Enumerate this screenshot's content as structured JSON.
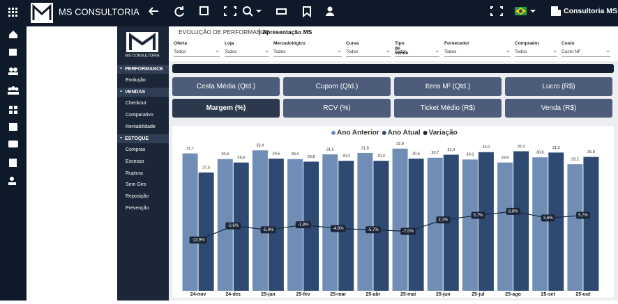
{
  "header": {
    "brand": "MS CONSULTORIA",
    "user": "Consultoria MS"
  },
  "sidebar": {
    "logo": "MS CONSULTORIA",
    "sections": [
      {
        "title": "PERFORMANCE",
        "items": [
          "Evolução"
        ]
      },
      {
        "title": "VENDAS",
        "items": [
          "Checkout",
          "Comparativo",
          "Rentabilidade"
        ]
      },
      {
        "title": "ESTOQUE",
        "items": [
          "Compras",
          "Excesso",
          "Ruptura",
          "Sem Giro",
          "Reposição",
          "Prevenção"
        ]
      }
    ]
  },
  "page": {
    "title": "EVOLUÇÃO DE PERFORMANCE",
    "subtitle": "Apresentação MS"
  },
  "filters": [
    {
      "label": "Oferta",
      "value": "Todos"
    },
    {
      "label": "Loja",
      "value": "Todos"
    },
    {
      "label": "Mercadológico",
      "value": "Todos"
    },
    {
      "label": "Curva",
      "value": "Todos"
    },
    {
      "label": "Tipo de Venda",
      "value": "Todos"
    },
    {
      "label": "Fornecedor",
      "value": "Todos"
    },
    {
      "label": "Comprador",
      "value": "Todos"
    },
    {
      "label": "Custo",
      "value": "Custo NF"
    }
  ],
  "buttons": [
    "Cesta Média (Qtd.)",
    "Cupom (Qtd.)",
    "Itens M² (Qtd.)",
    "Lucro (R$)",
    "Margem (%)",
    "RCV (%)",
    "Ticket Médio (R$)",
    "Venda (R$)"
  ],
  "selected_button": 4,
  "chart_data": {
    "type": "bar",
    "categories": [
      "24-nov",
      "24-dez",
      "25-jan",
      "25-fev",
      "25-mar",
      "25-abr",
      "25-mai",
      "25-jun",
      "25-jul",
      "25-ago",
      "25-set",
      "25-out"
    ],
    "ylim": [
      0,
      35
    ],
    "y2lim": [
      -54,
      66
    ],
    "series": [
      {
        "name": "Ano Anterior",
        "color": "#6f8db5",
        "type": "bar",
        "values": [
          31.7,
          30.4,
          32.4,
          30.4,
          31.5,
          31.8,
          32.8,
          30.7,
          30.3,
          29.6,
          30.8,
          29.2
        ],
        "value_labels": [
          "31,7",
          "30,4",
          "32,4",
          "30,4",
          "31,5",
          "31,8",
          "32,8",
          "30,7",
          "30,3",
          "29,6",
          "30,8",
          "29,2"
        ]
      },
      {
        "name": "Ano Atual",
        "color": "#2e4a72",
        "type": "bar",
        "values": [
          27.3,
          29.6,
          30.5,
          29.8,
          30.0,
          30.0,
          30.5,
          31.4,
          32.0,
          32.2,
          31.9,
          30.9
        ],
        "value_labels": [
          "27,3",
          "29,6",
          "30,5",
          "29,8",
          "30,0",
          "30,0",
          "30,5",
          "31,4",
          "32,0",
          "32,2",
          "31,9",
          "30,9"
        ]
      },
      {
        "name": "Variação",
        "color": "#1b2638",
        "type": "line",
        "axis": "y2",
        "values": [
          -13.9,
          -2.6,
          -5.8,
          -1.8,
          -4.8,
          -5.7,
          -7.0,
          2.1,
          5.7,
          8.8,
          3.6,
          5.7
        ],
        "value_labels": [
          "-13,9%",
          "-2,6%",
          "-5,8%",
          "-1,8%",
          "-4,8%",
          "-5,7%",
          "-7,0%",
          "2,1%",
          "5,7%",
          "8,8%",
          "3,6%",
          "5,7%"
        ]
      }
    ]
  }
}
